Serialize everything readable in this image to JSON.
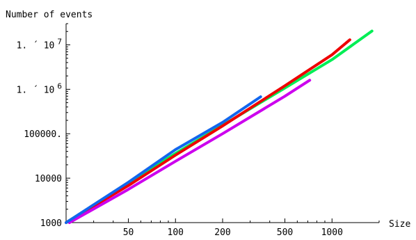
{
  "chart_data": {
    "type": "line",
    "title": "",
    "xlabel": "Size",
    "ylabel": "Number of events",
    "x_scale": "log",
    "y_scale": "log",
    "xlim": [
      20,
      2000
    ],
    "ylim": [
      1000,
      30000000
    ],
    "grid": false,
    "legend": "none",
    "x_ticks": [
      {
        "value": 50,
        "label": "50"
      },
      {
        "value": 100,
        "label": "100"
      },
      {
        "value": 200,
        "label": "200"
      },
      {
        "value": 500,
        "label": "500"
      },
      {
        "value": 1000,
        "label": "1000"
      }
    ],
    "x_minor_ticks": [
      30,
      40,
      60,
      70,
      80,
      90,
      300,
      400,
      600,
      700,
      800,
      900,
      2000
    ],
    "y_ticks": [
      {
        "value": 1000,
        "label": "1000"
      },
      {
        "value": 10000,
        "label": "10000"
      },
      {
        "value": 100000,
        "label": "100000."
      },
      {
        "value": 1000000,
        "label": "1. ´ 10",
        "sup": "6"
      },
      {
        "value": 10000000,
        "label": "1. ´ 10",
        "sup": "7"
      }
    ],
    "series": [
      {
        "color": "#00ee55",
        "x": [
          20,
          50,
          100,
          200,
          500,
          1000,
          1800
        ],
        "y": [
          1000,
          7700,
          36000,
          155000,
          1070000,
          4650000,
          20500000
        ]
      },
      {
        "color": "#ee0000",
        "x": [
          20,
          50,
          100,
          200,
          500,
          1000,
          1300
        ],
        "y": [
          1000,
          6800,
          33000,
          150000,
          1200000,
          6000000,
          13000000
        ]
      },
      {
        "color": "#cc00ee",
        "x": [
          21,
          50,
          100,
          200,
          500,
          720
        ],
        "y": [
          1000,
          5600,
          24000,
          100000,
          700000,
          1600000
        ]
      },
      {
        "color": "#1166ee",
        "x": [
          20,
          50,
          100,
          200,
          350
        ],
        "y": [
          1000,
          8100,
          44000,
          180000,
          680000
        ]
      }
    ]
  }
}
